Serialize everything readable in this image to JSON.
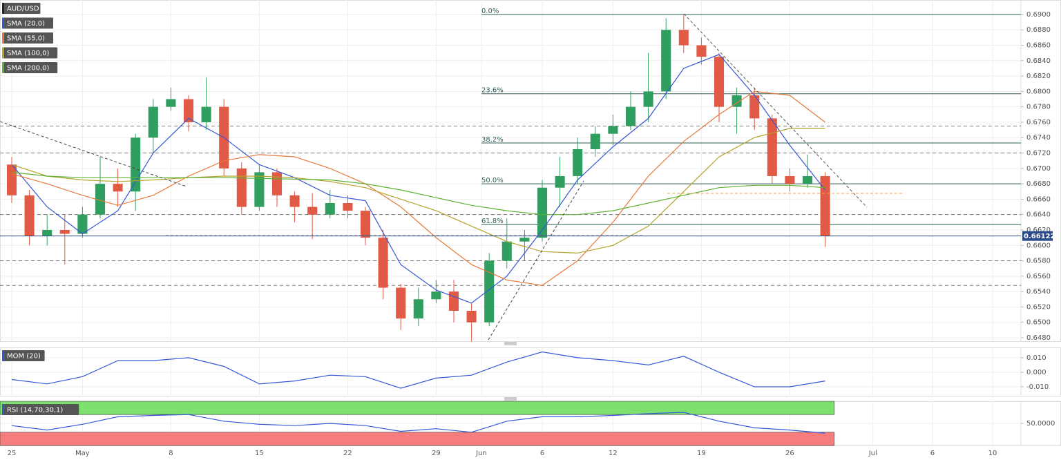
{
  "chart_data": [
    {
      "type": "candlestick",
      "title": "AUD/USD",
      "up_color": "#2f9e5e",
      "down_color": "#e05a45",
      "x": [
        0,
        1,
        2,
        3,
        4,
        5,
        6,
        7,
        8,
        9,
        10,
        11,
        12,
        13,
        14,
        15,
        16,
        17,
        18,
        19,
        20,
        21,
        22,
        23,
        24,
        25,
        26,
        27,
        28,
        29,
        30,
        31,
        32,
        33,
        34,
        35,
        36,
        37,
        38,
        39,
        40,
        41,
        42,
        43,
        44,
        45,
        46
      ],
      "open": [
        0.6705,
        0.6665,
        0.6612,
        0.662,
        0.6615,
        0.664,
        0.668,
        0.667,
        0.674,
        0.678,
        0.679,
        0.676,
        0.678,
        0.67,
        0.665,
        0.6695,
        0.6665,
        0.665,
        0.664,
        0.6655,
        0.6645,
        0.661,
        0.6545,
        0.6505,
        0.653,
        0.654,
        0.6515,
        0.65,
        0.658,
        0.6605,
        0.661,
        0.6675,
        0.669,
        0.6725,
        0.6745,
        0.6755,
        0.678,
        0.68,
        0.688,
        0.686,
        0.6845,
        0.678,
        0.6795,
        0.6765,
        0.669,
        0.668,
        0.669
      ],
      "high": [
        0.6715,
        0.6672,
        0.664,
        0.664,
        0.665,
        0.6715,
        0.67,
        0.6745,
        0.679,
        0.6805,
        0.6795,
        0.6818,
        0.679,
        0.6708,
        0.6705,
        0.67,
        0.667,
        0.6668,
        0.6672,
        0.6665,
        0.665,
        0.662,
        0.655,
        0.6545,
        0.6555,
        0.6555,
        0.6525,
        0.659,
        0.6635,
        0.662,
        0.6685,
        0.6715,
        0.674,
        0.6755,
        0.677,
        0.68,
        0.685,
        0.6895,
        0.69,
        0.687,
        0.685,
        0.6805,
        0.6805,
        0.677,
        0.67,
        0.6718,
        0.6695
      ],
      "low": [
        0.6655,
        0.66,
        0.66,
        0.6575,
        0.661,
        0.6635,
        0.665,
        0.6645,
        0.672,
        0.6775,
        0.6748,
        0.675,
        0.669,
        0.664,
        0.6645,
        0.665,
        0.663,
        0.6608,
        0.6635,
        0.6635,
        0.66,
        0.653,
        0.649,
        0.6495,
        0.6525,
        0.65,
        0.6475,
        0.6495,
        0.657,
        0.658,
        0.6605,
        0.665,
        0.668,
        0.6715,
        0.673,
        0.675,
        0.676,
        0.679,
        0.685,
        0.6835,
        0.676,
        0.6745,
        0.675,
        0.668,
        0.667,
        0.6675,
        0.6598
      ],
      "close": [
        0.6665,
        0.6612,
        0.662,
        0.6615,
        0.664,
        0.668,
        0.667,
        0.674,
        0.678,
        0.679,
        0.676,
        0.678,
        0.67,
        0.665,
        0.6695,
        0.6665,
        0.665,
        0.664,
        0.6655,
        0.6645,
        0.661,
        0.6545,
        0.6505,
        0.653,
        0.654,
        0.6515,
        0.65,
        0.658,
        0.6605,
        0.661,
        0.6675,
        0.669,
        0.6725,
        0.6745,
        0.6755,
        0.678,
        0.68,
        0.688,
        0.686,
        0.6845,
        0.678,
        0.6795,
        0.6765,
        0.669,
        0.668,
        0.669,
        0.6612
      ],
      "series": [
        {
          "name": "SMA (20,0)",
          "color": "#3556d8",
          "x": [
            0,
            2,
            4,
            6,
            8,
            10,
            12,
            14,
            16,
            18,
            20,
            22,
            24,
            26,
            28,
            30,
            32,
            34,
            36,
            38,
            40,
            42,
            44,
            46
          ],
          "values": [
            0.6705,
            0.665,
            0.6615,
            0.6645,
            0.672,
            0.6765,
            0.674,
            0.6705,
            0.6688,
            0.6665,
            0.6658,
            0.6575,
            0.6542,
            0.6525,
            0.656,
            0.662,
            0.6685,
            0.6728,
            0.6765,
            0.683,
            0.6848,
            0.6795,
            0.673,
            0.6672
          ]
        },
        {
          "name": "SMA (55,0)",
          "color": "#e8783a",
          "x": [
            0,
            2,
            4,
            6,
            8,
            10,
            12,
            14,
            16,
            18,
            20,
            22,
            24,
            26,
            28,
            30,
            32,
            34,
            36,
            38,
            40,
            42,
            44,
            46
          ],
          "values": [
            0.6693,
            0.668,
            0.6665,
            0.6652,
            0.6665,
            0.669,
            0.671,
            0.6718,
            0.6715,
            0.67,
            0.668,
            0.665,
            0.661,
            0.6575,
            0.6555,
            0.6548,
            0.658,
            0.663,
            0.669,
            0.6735,
            0.677,
            0.68,
            0.6795,
            0.676
          ]
        },
        {
          "name": "SMA (100,0)",
          "color": "#b5a22a",
          "x": [
            0,
            2,
            4,
            6,
            8,
            10,
            12,
            14,
            16,
            18,
            20,
            22,
            24,
            26,
            28,
            30,
            32,
            34,
            36,
            38,
            40,
            42,
            44,
            46
          ],
          "values": [
            0.6705,
            0.669,
            0.6685,
            0.6683,
            0.6685,
            0.6688,
            0.669,
            0.669,
            0.6688,
            0.6683,
            0.6675,
            0.666,
            0.6645,
            0.6625,
            0.6605,
            0.6592,
            0.659,
            0.66,
            0.6625,
            0.667,
            0.6715,
            0.674,
            0.6752,
            0.6752
          ]
        },
        {
          "name": "SMA (200,0)",
          "color": "#5cb230",
          "x": [
            0,
            2,
            4,
            6,
            8,
            10,
            12,
            14,
            16,
            18,
            20,
            22,
            24,
            26,
            28,
            30,
            32,
            34,
            36,
            38,
            40,
            42,
            44,
            46
          ],
          "values": [
            0.6695,
            0.669,
            0.6688,
            0.6688,
            0.6688,
            0.6688,
            0.6688,
            0.6687,
            0.6686,
            0.6685,
            0.668,
            0.6672,
            0.6662,
            0.6652,
            0.6645,
            0.664,
            0.664,
            0.6645,
            0.6655,
            0.6665,
            0.6675,
            0.6678,
            0.6678,
            0.6675
          ]
        }
      ],
      "xlim": [
        -0.664,
        57.07
      ],
      "xticks": [
        {
          "value": 0,
          "label": "25"
        },
        {
          "value": 4,
          "label": "May"
        },
        {
          "value": 9,
          "label": "8"
        },
        {
          "value": 14,
          "label": "15"
        },
        {
          "value": 19,
          "label": "22"
        },
        {
          "value": 24,
          "label": "29"
        },
        {
          "value": 26.56,
          "label": "Jun"
        },
        {
          "value": 30,
          "label": "6"
        },
        {
          "value": 34,
          "label": "12"
        },
        {
          "value": 39,
          "label": "19"
        },
        {
          "value": 44,
          "label": "26"
        },
        {
          "value": 48.7,
          "label": "Jul"
        },
        {
          "value": 52.07,
          "label": "6"
        },
        {
          "value": 55.47,
          "label": "10"
        }
      ],
      "ylim": [
        0.64755,
        0.69188
      ],
      "yticks": [
        {
          "value": 0.648,
          "label": "0.6480"
        },
        {
          "value": 0.65,
          "label": "0.6500"
        },
        {
          "value": 0.652,
          "label": "0.6520"
        },
        {
          "value": 0.654,
          "label": "0.6540"
        },
        {
          "value": 0.656,
          "label": "0.6560"
        },
        {
          "value": 0.658,
          "label": "0.6580"
        },
        {
          "value": 0.66,
          "label": "0.6600"
        },
        {
          "value": 0.662,
          "label": "0.6620"
        },
        {
          "value": 0.664,
          "label": "0.6640"
        },
        {
          "value": 0.666,
          "label": "0.6660"
        },
        {
          "value": 0.668,
          "label": "0.6680"
        },
        {
          "value": 0.67,
          "label": "0.6700"
        },
        {
          "value": 0.672,
          "label": "0.6720"
        },
        {
          "value": 0.674,
          "label": "0.6740"
        },
        {
          "value": 0.676,
          "label": "0.6760"
        },
        {
          "value": 0.678,
          "label": "0.6780"
        },
        {
          "value": 0.68,
          "label": "0.6800"
        },
        {
          "value": 0.682,
          "label": "0.6820"
        },
        {
          "value": 0.684,
          "label": "0.6840"
        },
        {
          "value": 0.686,
          "label": "0.6860"
        },
        {
          "value": 0.688,
          "label": "0.6880"
        },
        {
          "value": 0.69,
          "label": "0.6900"
        }
      ],
      "grid": true,
      "hlines": [
        0.6755,
        0.672,
        0.664,
        0.658,
        0.6548
      ],
      "fib_levels": [
        {
          "label": "0.0%",
          "value": 0.69
        },
        {
          "label": "23.6%",
          "value": 0.6797
        },
        {
          "label": "38.2%",
          "value": 0.6733
        },
        {
          "label": "50.0%",
          "value": 0.668
        },
        {
          "label": "61.8%",
          "value": 0.6627
        }
      ],
      "last_price": 0.66122
    },
    {
      "type": "line",
      "series": [
        {
          "name": "MOM (20)",
          "color": "#3556d8",
          "x": [
            0,
            2,
            4,
            6,
            8,
            10,
            12,
            14,
            16,
            18,
            20,
            22,
            24,
            26,
            28,
            30,
            32,
            34,
            36,
            38,
            40,
            42,
            44,
            46
          ],
          "values": [
            -0.005,
            -0.008,
            -0.003,
            0.008,
            0.008,
            0.01,
            0.004,
            -0.008,
            -0.006,
            -0.002,
            -0.003,
            -0.011,
            -0.004,
            -0.002,
            0.007,
            0.014,
            0.01,
            0.008,
            0.005,
            0.011,
            0,
            -0.01,
            -0.01,
            -0.006
          ]
        }
      ],
      "ylim": [
        -0.0162,
        0.0171
      ],
      "yticks": [
        {
          "value": 0.01,
          "label": "0.010"
        },
        {
          "value": 0,
          "label": "0.000"
        },
        {
          "value": -0.01,
          "label": "-0.010"
        }
      ],
      "grid": true
    },
    {
      "type": "line",
      "series": [
        {
          "name": "RSI (14,70,30,1)",
          "color": "#3556d8",
          "x": [
            0,
            2,
            4,
            6,
            8,
            10,
            12,
            14,
            16,
            18,
            20,
            22,
            24,
            26,
            28,
            30,
            32,
            34,
            36,
            38,
            40,
            42,
            44,
            46
          ],
          "values": [
            45,
            35,
            48,
            65,
            68,
            70,
            55,
            48,
            45,
            50,
            45,
            32,
            38,
            30,
            55,
            65,
            65,
            68,
            72,
            75,
            55,
            40,
            35,
            28
          ]
        }
      ],
      "bands": [
        {
          "range": [
            70,
            100
          ],
          "color": "#7ee06f"
        },
        {
          "range": [
            0,
            30
          ],
          "color": "#f57d7d"
        }
      ],
      "ylim": [
        0,
        100
      ],
      "yticks": [
        {
          "value": 50,
          "label": "50.0000"
        }
      ],
      "grid": true
    }
  ]
}
